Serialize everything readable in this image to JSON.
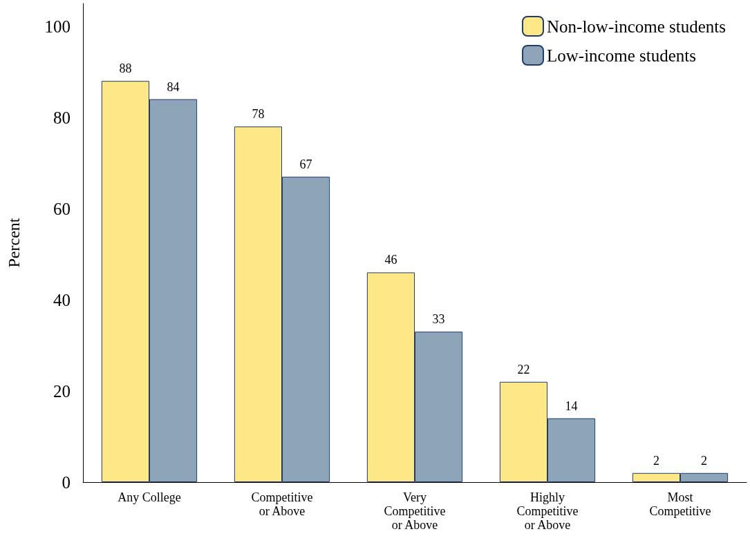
{
  "chart_data": {
    "type": "bar",
    "ylabel": "Percent",
    "categories": [
      "Any College",
      "Competitive\nor Above",
      "Very\nCompetitive\nor Above",
      "Highly\nCompetitive\nor Above",
      "Most\nCompetitive"
    ],
    "series": [
      {
        "name": "Non-low-income students",
        "color": "#fee787",
        "values": [
          88,
          78,
          46,
          22,
          2
        ]
      },
      {
        "name": "Low-income students",
        "color": "#8da4b9",
        "values": [
          84,
          67,
          33,
          14,
          2
        ]
      }
    ],
    "ylim": [
      0,
      105
    ],
    "yticks": [
      0,
      20,
      40,
      60,
      80,
      100
    ],
    "grid": false,
    "legend": "top right",
    "data_labels": true
  }
}
